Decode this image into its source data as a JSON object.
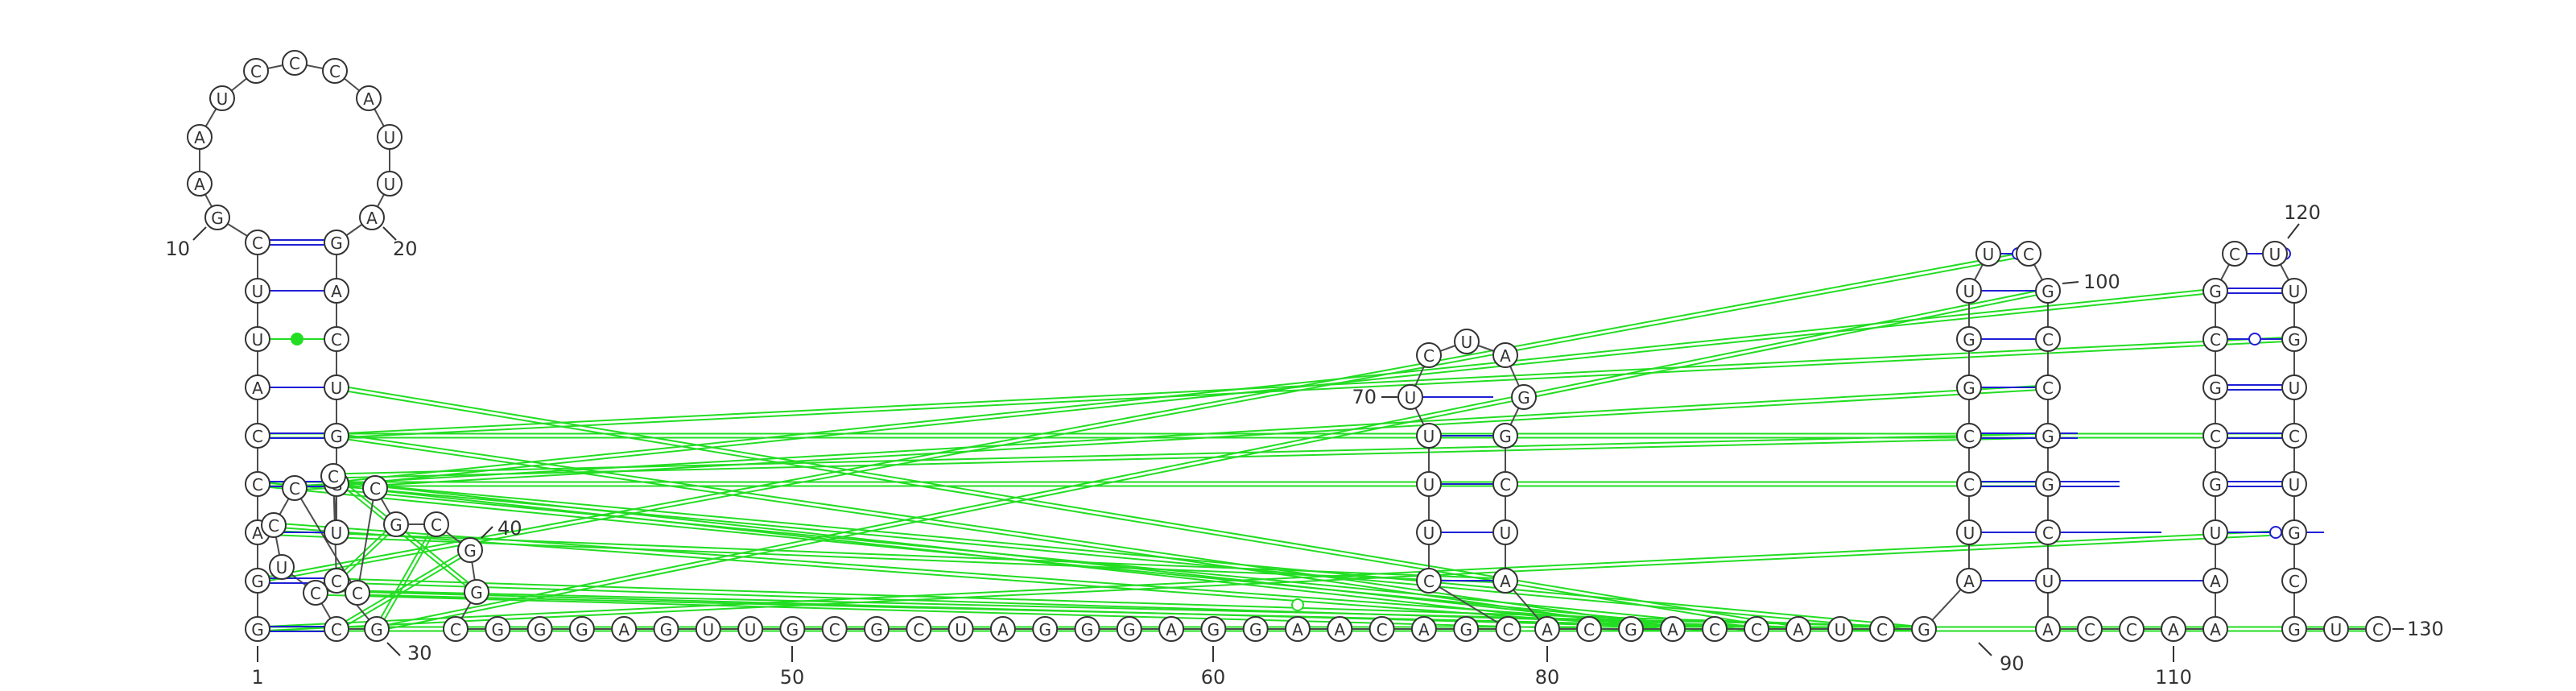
{
  "colors": {
    "backbone": "#4d4d4d",
    "nucleotide_stroke": "#333333",
    "canonical_pair": "#1f1fd6",
    "tertiary_interaction": "#22dd22",
    "text": "#333333"
  },
  "nucleotides": [
    {
      "n": 1,
      "base": "G"
    },
    {
      "n": 2,
      "base": "G"
    },
    {
      "n": 3,
      "base": "A"
    },
    {
      "n": 4,
      "base": "C"
    },
    {
      "n": 5,
      "base": "C"
    },
    {
      "n": 6,
      "base": "A"
    },
    {
      "n": 7,
      "base": "U"
    },
    {
      "n": 8,
      "base": "U"
    },
    {
      "n": 9,
      "base": "C"
    },
    {
      "n": 10,
      "base": "G"
    },
    {
      "n": 11,
      "base": "A"
    },
    {
      "n": 12,
      "base": "A"
    },
    {
      "n": 13,
      "base": "U"
    },
    {
      "n": 14,
      "base": "C"
    },
    {
      "n": 15,
      "base": "C"
    },
    {
      "n": 16,
      "base": "C"
    },
    {
      "n": 17,
      "base": "A"
    },
    {
      "n": 18,
      "base": "U"
    },
    {
      "n": 19,
      "base": "U"
    },
    {
      "n": 20,
      "base": "A"
    },
    {
      "n": 21,
      "base": "G"
    },
    {
      "n": 22,
      "base": "A"
    },
    {
      "n": 23,
      "base": "C"
    },
    {
      "n": 24,
      "base": "U"
    },
    {
      "n": 25,
      "base": "G"
    },
    {
      "n": 26,
      "base": "G"
    },
    {
      "n": 27,
      "base": "U"
    },
    {
      "n": 28,
      "base": "C"
    },
    {
      "n": 29,
      "base": "C"
    },
    {
      "n": 30,
      "base": "G"
    },
    {
      "n": 31,
      "base": "C"
    },
    {
      "n": 32,
      "base": "C"
    },
    {
      "n": 33,
      "base": "U"
    },
    {
      "n": 34,
      "base": "C"
    },
    {
      "n": 35,
      "base": "C"
    },
    {
      "n": 36,
      "base": "C"
    },
    {
      "n": 37,
      "base": "C"
    },
    {
      "n": 38,
      "base": "G"
    },
    {
      "n": 39,
      "base": "C"
    },
    {
      "n": 40,
      "base": "G"
    },
    {
      "n": 41,
      "base": "G"
    },
    {
      "n": 42,
      "base": "C"
    },
    {
      "n": 43,
      "base": "G"
    },
    {
      "n": 44,
      "base": "G"
    },
    {
      "n": 45,
      "base": "G"
    },
    {
      "n": 46,
      "base": "A"
    },
    {
      "n": 47,
      "base": "G"
    },
    {
      "n": 48,
      "base": "U"
    },
    {
      "n": 49,
      "base": "U"
    },
    {
      "n": 50,
      "base": "G"
    },
    {
      "n": 51,
      "base": "C"
    },
    {
      "n": 52,
      "base": "G"
    },
    {
      "n": 53,
      "base": "C"
    },
    {
      "n": 54,
      "base": "U"
    },
    {
      "n": 55,
      "base": "A"
    },
    {
      "n": 56,
      "base": "G"
    },
    {
      "n": 57,
      "base": "G"
    },
    {
      "n": 58,
      "base": "G"
    },
    {
      "n": 59,
      "base": "A"
    },
    {
      "n": 60,
      "base": "G"
    },
    {
      "n": 61,
      "base": "G"
    },
    {
      "n": 62,
      "base": "A"
    },
    {
      "n": 63,
      "base": "A"
    },
    {
      "n": 64,
      "base": "C"
    },
    {
      "n": 65,
      "base": "A"
    },
    {
      "n": 66,
      "base": "G"
    },
    {
      "n": 67,
      "base": "C"
    },
    {
      "n": 68,
      "base": "C"
    },
    {
      "n": 69,
      "base": "U"
    },
    {
      "n": 70,
      "base": "U"
    },
    {
      "n": 71,
      "base": "U"
    },
    {
      "n": 72,
      "base": "U"
    },
    {
      "n": 73,
      "base": "C"
    },
    {
      "n": 74,
      "base": "U"
    },
    {
      "n": 75,
      "base": "A"
    },
    {
      "n": 76,
      "base": "G"
    },
    {
      "n": 77,
      "base": "G"
    },
    {
      "n": 78,
      "base": "C"
    },
    {
      "n": 79,
      "base": "U"
    },
    {
      "n": 80,
      "base": "A"
    },
    {
      "n": 81,
      "base": "A"
    },
    {
      "n": 82,
      "base": "C"
    },
    {
      "n": 83,
      "base": "G"
    },
    {
      "n": 84,
      "base": "A"
    },
    {
      "n": 85,
      "base": "C"
    },
    {
      "n": 86,
      "base": "C"
    },
    {
      "n": 87,
      "base": "A"
    },
    {
      "n": 88,
      "base": "U"
    },
    {
      "n": 89,
      "base": "C"
    },
    {
      "n": 90,
      "base": "G"
    },
    {
      "n": 91,
      "base": "A"
    },
    {
      "n": 92,
      "base": "U"
    },
    {
      "n": 93,
      "base": "C"
    },
    {
      "n": 94,
      "base": "C"
    },
    {
      "n": 95,
      "base": "G"
    },
    {
      "n": 96,
      "base": "G"
    },
    {
      "n": 97,
      "base": "U"
    },
    {
      "n": 98,
      "base": "U"
    },
    {
      "n": 99,
      "base": "C"
    },
    {
      "n": 100,
      "base": "G"
    },
    {
      "n": 101,
      "base": "C"
    },
    {
      "n": 102,
      "base": "C"
    },
    {
      "n": 103,
      "base": "G"
    },
    {
      "n": 104,
      "base": "G"
    },
    {
      "n": 105,
      "base": "C"
    },
    {
      "n": 106,
      "base": "U"
    },
    {
      "n": 107,
      "base": "A"
    },
    {
      "n": 108,
      "base": "C"
    },
    {
      "n": 109,
      "base": "C"
    },
    {
      "n": 110,
      "base": "A"
    },
    {
      "n": 111,
      "base": "A"
    },
    {
      "n": 112,
      "base": "A"
    },
    {
      "n": 113,
      "base": "U"
    },
    {
      "n": 114,
      "base": "G"
    },
    {
      "n": 115,
      "base": "C"
    },
    {
      "n": 116,
      "base": "G"
    },
    {
      "n": 117,
      "base": "C"
    },
    {
      "n": 118,
      "base": "G"
    },
    {
      "n": 119,
      "base": "C"
    },
    {
      "n": 120,
      "base": "U"
    },
    {
      "n": 121,
      "base": "U"
    },
    {
      "n": 122,
      "base": "G"
    },
    {
      "n": 123,
      "base": "U"
    },
    {
      "n": 124,
      "base": "C"
    },
    {
      "n": 125,
      "base": "U"
    },
    {
      "n": 126,
      "base": "G"
    },
    {
      "n": 127,
      "base": "C"
    },
    {
      "n": 128,
      "base": "G"
    },
    {
      "n": 129,
      "base": "U"
    },
    {
      "n": 130,
      "base": "C"
    }
  ],
  "base_pairs": [
    {
      "i": 1,
      "j": 31,
      "type": "wc"
    },
    {
      "i": 2,
      "j": 29,
      "type": "wc"
    },
    {
      "i": 3,
      "j": 27,
      "type": "wc"
    },
    {
      "i": 4,
      "j": 26,
      "type": "wc"
    },
    {
      "i": 5,
      "j": 25,
      "type": "wc"
    },
    {
      "i": 6,
      "j": 24,
      "type": "wc"
    },
    {
      "i": 7,
      "j": 23,
      "type": "gu"
    },
    {
      "i": 8,
      "j": 22,
      "type": "wc"
    },
    {
      "i": 9,
      "j": 21,
      "type": "wc"
    },
    {
      "i": 68,
      "j": 80,
      "type": "wc"
    },
    {
      "i": 69,
      "j": 78,
      "type": "wc"
    },
    {
      "i": 70,
      "j": 77,
      "type": "wc"
    },
    {
      "i": 71,
      "j": 76,
      "type": "wc"
    },
    {
      "i": 72,
      "j": 75,
      "type": "wc"
    },
    {
      "i": 91,
      "j": 111,
      "type": "wc"
    },
    {
      "i": 92,
      "j": 110,
      "type": "wc"
    },
    {
      "i": 93,
      "j": 109,
      "type": "wc"
    },
    {
      "i": 94,
      "j": 108,
      "type": "wc"
    },
    {
      "i": 95,
      "j": 107,
      "type": "wc"
    },
    {
      "i": 96,
      "j": 106,
      "type": "wc"
    },
    {
      "i": 97,
      "j": 105,
      "type": "wc"
    },
    {
      "i": 98,
      "j": 104,
      "type": "nc"
    },
    {
      "i": 113,
      "j": 129,
      "type": "nc"
    },
    {
      "i": 114,
      "j": 128,
      "type": "wc"
    },
    {
      "i": 115,
      "j": 127,
      "type": "wc"
    },
    {
      "i": 116,
      "j": 126,
      "type": "wc"
    },
    {
      "i": 117,
      "j": 125,
      "type": "nc"
    },
    {
      "i": 118,
      "j": 124,
      "type": "wc"
    },
    {
      "i": 119,
      "j": 123,
      "type": "wc"
    },
    {
      "i": 120,
      "j": 122,
      "type": "nc"
    }
  ],
  "tertiary_interactions": [
    {
      "i": 24,
      "j": 87
    },
    {
      "i": 25,
      "j": 84
    },
    {
      "i": 26,
      "j": 90
    },
    {
      "i": 4,
      "j": 86
    },
    {
      "i": 25,
      "j": 122
    },
    {
      "i": 26,
      "j": 118
    },
    {
      "i": 4,
      "j": 104
    },
    {
      "i": 35,
      "j": 102
    },
    {
      "i": 28,
      "j": 103
    },
    {
      "i": 2,
      "j": 99
    },
    {
      "i": 30,
      "j": 100
    },
    {
      "i": 5,
      "j": 124
    },
    {
      "i": 1,
      "j": 126
    },
    {
      "i": 34,
      "j": 85
    },
    {
      "i": 36,
      "j": 90
    },
    {
      "i": 37,
      "j": 84
    },
    {
      "i": 40,
      "j": 31
    },
    {
      "i": 39,
      "j": 30
    },
    {
      "i": 38,
      "j": 29
    },
    {
      "i": 41,
      "j": 28
    },
    {
      "i": 1,
      "j": 130
    },
    {
      "i": 3,
      "j": 80
    },
    {
      "i": 32,
      "j": 84
    },
    {
      "i": 29,
      "j": 90
    }
  ],
  "labels": [
    {
      "n": 1,
      "text": "1"
    },
    {
      "n": 10,
      "text": "10"
    },
    {
      "n": 20,
      "text": "20"
    },
    {
      "n": 30,
      "text": "30"
    },
    {
      "n": 40,
      "text": "40"
    },
    {
      "n": 50,
      "text": "50"
    },
    {
      "n": 60,
      "text": "60"
    },
    {
      "n": 70,
      "text": "70"
    },
    {
      "n": 80,
      "text": "80"
    },
    {
      "n": 90,
      "text": "90"
    },
    {
      "n": 100,
      "text": "100"
    },
    {
      "n": 110,
      "text": "110"
    },
    {
      "n": 120,
      "text": "120"
    },
    {
      "n": 130,
      "text": "130"
    }
  ]
}
